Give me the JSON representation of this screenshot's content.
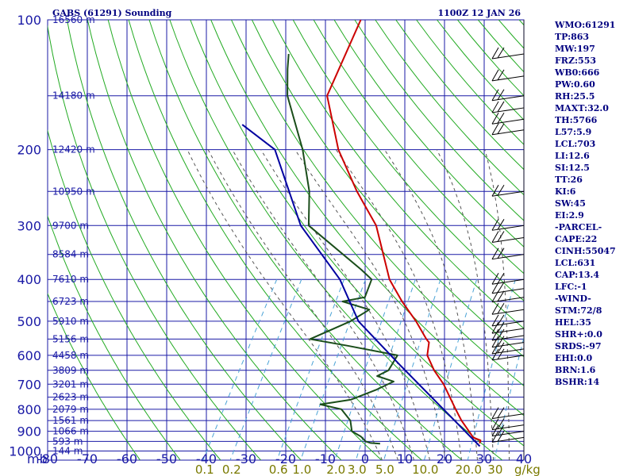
{
  "chart_data": {
    "type": "line",
    "title_left": "GABS (61291) Sounding",
    "title_right": "1100Z 12 JAN 26",
    "y_axis_unit_label": "mb",
    "pressure_ticks": [
      {
        "p": 100,
        "label": "100"
      },
      {
        "p": 200,
        "label": "200"
      },
      {
        "p": 300,
        "label": "300"
      },
      {
        "p": 400,
        "label": "400"
      },
      {
        "p": 500,
        "label": "500"
      },
      {
        "p": 600,
        "label": "600"
      },
      {
        "p": 700,
        "label": "700"
      },
      {
        "p": 800,
        "label": "800"
      },
      {
        "p": 900,
        "label": "900"
      },
      {
        "p": 1000,
        "label": "1000"
      }
    ],
    "grid_pressures": [
      100,
      150,
      200,
      250,
      300,
      350,
      400,
      450,
      500,
      550,
      600,
      650,
      700,
      750,
      800,
      850,
      900,
      950,
      1000
    ],
    "temperature_ticks": [
      {
        "t": -80,
        "label": "-80"
      },
      {
        "t": -70,
        "label": "-70"
      },
      {
        "t": -60,
        "label": "-60"
      },
      {
        "t": -50,
        "label": "-50"
      },
      {
        "t": -40,
        "label": "-40"
      },
      {
        "t": -30,
        "label": "-30"
      },
      {
        "t": -20,
        "label": "-20"
      },
      {
        "t": -10,
        "label": "-10"
      },
      {
        "t": 0,
        "label": "0"
      },
      {
        "t": 10,
        "label": "10"
      },
      {
        "t": 20,
        "label": "20"
      },
      {
        "t": 30,
        "label": "30"
      },
      {
        "t": 40,
        "label": "40"
      }
    ],
    "mixing_ratio_ticks": [
      {
        "w": 0.1,
        "label": "0.1"
      },
      {
        "w": 0.2,
        "label": "0.2"
      },
      {
        "w": 0.6,
        "label": "0.6"
      },
      {
        "w": 1.0,
        "label": "1.0"
      },
      {
        "w": 2.0,
        "label": "2.0"
      },
      {
        "w": 3.0,
        "label": "3.0"
      },
      {
        "w": 5.0,
        "label": "5.0"
      },
      {
        "w": 10.0,
        "label": "10.0"
      },
      {
        "w": 20.0,
        "label": "20.0"
      },
      {
        "w": 30.0,
        "label": "30"
      }
    ],
    "mixing_ratio_unit_label": "g/kg",
    "height_labels": [
      {
        "p": 100,
        "label": "16560 m"
      },
      {
        "p": 150,
        "label": "14180 m"
      },
      {
        "p": 200,
        "label": "12420 m"
      },
      {
        "p": 250,
        "label": "10950 m"
      },
      {
        "p": 300,
        "label": "9700 m"
      },
      {
        "p": 350,
        "label": "8584 m"
      },
      {
        "p": 400,
        "label": "7610 m"
      },
      {
        "p": 450,
        "label": "6723 m"
      },
      {
        "p": 500,
        "label": "5910 m"
      },
      {
        "p": 550,
        "label": "5156 m"
      },
      {
        "p": 600,
        "label": "4458 m"
      },
      {
        "p": 650,
        "label": "3809 m"
      },
      {
        "p": 700,
        "label": "3201 m"
      },
      {
        "p": 750,
        "label": "2623 m"
      },
      {
        "p": 800,
        "label": "2079 m"
      },
      {
        "p": 850,
        "label": "1561 m"
      },
      {
        "p": 900,
        "label": "1066 m"
      },
      {
        "p": 950,
        "label": "593 m"
      },
      {
        "p": 1000,
        "label": "144 m"
      }
    ],
    "series": [
      {
        "role": "temperature",
        "color": "#cc0000",
        "points": [
          {
            "p": 960,
            "t": 26.0
          },
          {
            "p": 945,
            "t": 25.8
          },
          {
            "p": 930,
            "t": 23.5
          },
          {
            "p": 900,
            "t": 21.5
          },
          {
            "p": 850,
            "t": 18.0
          },
          {
            "p": 800,
            "t": 14.8
          },
          {
            "p": 700,
            "t": 8.0
          },
          {
            "p": 650,
            "t": 3.5
          },
          {
            "p": 600,
            "t": -0.5
          },
          {
            "p": 560,
            "t": -2.0
          },
          {
            "p": 550,
            "t": -3.2
          },
          {
            "p": 500,
            "t": -8.5
          },
          {
            "p": 450,
            "t": -15.0
          },
          {
            "p": 400,
            "t": -21.5
          },
          {
            "p": 300,
            "t": -33.0
          },
          {
            "p": 250,
            "t": -43.0
          },
          {
            "p": 200,
            "t": -54.0
          },
          {
            "p": 150,
            "t": -65.0
          },
          {
            "p": 100,
            "t": -68.0
          }
        ]
      },
      {
        "role": "dewpoint",
        "color": "#1a4d1a",
        "points": [
          {
            "p": 962,
            "t": 1.0
          },
          {
            "p": 958,
            "t": -1.5
          },
          {
            "p": 950,
            "t": -3.0
          },
          {
            "p": 925,
            "t": -5.0
          },
          {
            "p": 900,
            "t": -8.0
          },
          {
            "p": 850,
            "t": -10.0
          },
          {
            "p": 800,
            "t": -14.0
          },
          {
            "p": 780,
            "t": -20.0
          },
          {
            "p": 760,
            "t": -13.0
          },
          {
            "p": 720,
            "t": -8.0
          },
          {
            "p": 690,
            "t": -5.0
          },
          {
            "p": 670,
            "t": -10.0
          },
          {
            "p": 650,
            "t": -8.0
          },
          {
            "p": 600,
            "t": -8.0
          },
          {
            "p": 570,
            "t": -22.0
          },
          {
            "p": 550,
            "t": -32.5
          },
          {
            "p": 500,
            "t": -25.0
          },
          {
            "p": 470,
            "t": -22.0
          },
          {
            "p": 450,
            "t": -30.0
          },
          {
            "p": 440,
            "t": -25.0
          },
          {
            "p": 400,
            "t": -26.0
          },
          {
            "p": 380,
            "t": -30.0
          },
          {
            "p": 300,
            "t": -50.0
          },
          {
            "p": 250,
            "t": -55.0
          },
          {
            "p": 200,
            "t": -63.0
          },
          {
            "p": 150,
            "t": -75.0
          },
          {
            "p": 130,
            "t": -79.0
          },
          {
            "p": 120,
            "t": -81.0
          }
        ]
      },
      {
        "role": "parcel",
        "color": "#0000a0",
        "points": [
          {
            "p": 975,
            "t": 26.5
          },
          {
            "p": 631,
            "t": -6.0
          },
          {
            "p": 500,
            "t": -23.0
          },
          {
            "p": 400,
            "t": -34.0
          },
          {
            "p": 300,
            "t": -52.0
          },
          {
            "p": 200,
            "t": -70.0
          },
          {
            "p": 175,
            "t": -82.0
          }
        ]
      }
    ],
    "wind_barbs": [
      {
        "p": 120
      },
      {
        "p": 135
      },
      {
        "p": 150
      },
      {
        "p": 160
      },
      {
        "p": 170
      },
      {
        "p": 180
      },
      {
        "p": 250
      },
      {
        "p": 300
      },
      {
        "p": 320
      },
      {
        "p": 350
      },
      {
        "p": 400
      },
      {
        "p": 420
      },
      {
        "p": 440
      },
      {
        "p": 470
      },
      {
        "p": 500
      },
      {
        "p": 520
      },
      {
        "p": 540
      },
      {
        "p": 560
      },
      {
        "p": 580
      },
      {
        "p": 600
      },
      {
        "p": 820
      },
      {
        "p": 870
      },
      {
        "p": 900
      },
      {
        "p": 930
      }
    ],
    "indices": [
      "WMO:61291",
      "TP:863",
      "MW:197",
      "FRZ:553",
      "WB0:666",
      "PW:0.60",
      "RH:25.5",
      "MAXT:32.0",
      "TH:5766",
      "L57:5.9",
      "LCL:703",
      "LI:12.6",
      "SI:12.5",
      "TT:26",
      "KI:6",
      "SW:45",
      "EI:2.9",
      "-PARCEL-",
      "CAPE:22",
      "CINH:55047",
      "LCL:631",
      "CAP:13.4",
      "LFC:-1",
      "-WIND-",
      "STM:72/8",
      "HEL:35",
      "SHR+:0.0",
      "SRDS:-97",
      "EHI:0.0",
      "BRN:1.6",
      "BSHR:14"
    ],
    "colors": {
      "grid": "#1a1aa6",
      "dry_adiabat": "#22aa22",
      "moist_adiabat": "#555555",
      "mixing_ratio": "#4aa3d6",
      "temperature": "#cc0000",
      "dewpoint": "#1a4d1a",
      "parcel": "#0000a0",
      "text": "#000080"
    }
  }
}
